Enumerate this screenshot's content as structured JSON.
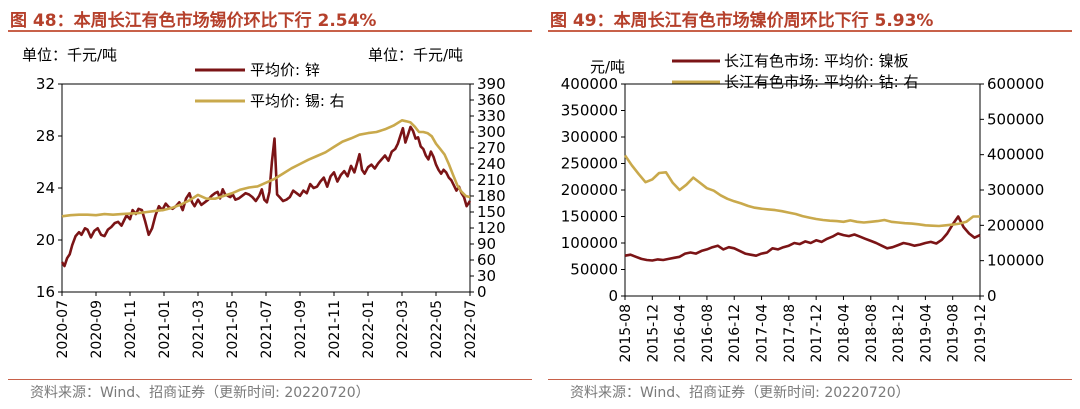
{
  "colors": {
    "title": "#b5402b",
    "rule": "#c8614a",
    "zinc": "#7b1416",
    "tin": "#c9a94c",
    "source": "#7a7a7a"
  },
  "chart_data": [
    {
      "type": "line",
      "title": "图 48：本周长江有色市场锡价环比下行 2.54%",
      "unit_left": "单位：千元/吨",
      "unit_right": "单位：千元/吨",
      "source": "资料来源：Wind、招商证券（更新时间: 20220720）",
      "x_ticks": [
        "2020-07",
        "2020-09",
        "2020-11",
        "2021-01",
        "2021-03",
        "2021-05",
        "2021-07",
        "2021-09",
        "2021-11",
        "2022-01",
        "2022-03",
        "2022-05",
        "2022-07"
      ],
      "y_left": {
        "ticks": [
          "16",
          "20",
          "24",
          "28",
          "32"
        ],
        "lim": [
          16,
          32
        ]
      },
      "y_right": {
        "ticks": [
          "0",
          "30",
          "60",
          "90",
          "120",
          "150",
          "180",
          "210",
          "240",
          "270",
          "300",
          "330",
          "360",
          "390"
        ],
        "lim": [
          0,
          390
        ]
      },
      "series": [
        {
          "name": "平均价: 锌",
          "axis": "left",
          "color": "#7b1416",
          "x": [
            0,
            0.3,
            0.6,
            0.9,
            1.2,
            1.6,
            2,
            2.3,
            2.7,
            3,
            3.4,
            3.8,
            4.2,
            4.6,
            5,
            5.4,
            5.8,
            6.2,
            6.6,
            7,
            7.3,
            7.6,
            8,
            8.3,
            8.7,
            9,
            9.4,
            9.8,
            10.2,
            10.6,
            11,
            11.4,
            11.8,
            12.2,
            12.6,
            13,
            13.4,
            13.8,
            14.2,
            14.6,
            15,
            15.3,
            15.6,
            16,
            16.4,
            16.8,
            17.2,
            17.6,
            18,
            18.3,
            18.6,
            18.9,
            19.2,
            19.5,
            19.8,
            20.1,
            20.4,
            20.8,
            21.2,
            21.6,
            22,
            22.4,
            22.8,
            23.2,
            23.5,
            23.8,
            24.1,
            24.4,
            24.7,
            25,
            25.3,
            25.6,
            26,
            26.4,
            26.8,
            27.2,
            27.6,
            28,
            28.4,
            28.8,
            29.2,
            29.6,
            30,
            30.4,
            30.8,
            31.2,
            31.6,
            32,
            32.4,
            32.8,
            33.2,
            33.6,
            34,
            34.4,
            34.7,
            35,
            35.3,
            35.6,
            36,
            36.4,
            36.8,
            37.2,
            37.6,
            38,
            38.4,
            38.8,
            39.2,
            39.5,
            39.8,
            40.1,
            40.4,
            40.7,
            41,
            41.3,
            41.6,
            41.9,
            42.2,
            42.5,
            42.8,
            43.1,
            43.4,
            43.7,
            44,
            44.3,
            44.6,
            44.9,
            45.2,
            45.5,
            45.8,
            46.1,
            46.4,
            46.7,
            47,
            47.3,
            47.6,
            48
          ],
          "values": [
            18.3,
            18.0,
            18.6,
            18.9,
            19.6,
            20.3,
            20.6,
            20.4,
            20.9,
            20.8,
            20.2,
            20.7,
            20.9,
            20.4,
            20.3,
            20.8,
            21.0,
            21.3,
            21.4,
            21.1,
            21.5,
            21.9,
            21.6,
            22.3,
            22.0,
            22.4,
            22.3,
            21.4,
            20.4,
            20.9,
            21.9,
            22.6,
            22.3,
            22.8,
            22.5,
            22.4,
            22.6,
            22.9,
            22.3,
            23.2,
            23.6,
            22.9,
            22.6,
            23.1,
            22.7,
            22.9,
            23.1,
            23.4,
            23.6,
            23.7,
            23.2,
            23.9,
            23.5,
            23.4,
            23.3,
            23.5,
            23.1,
            23.2,
            23.4,
            23.6,
            23.5,
            23.3,
            23.0,
            23.4,
            23.9,
            23.1,
            22.9,
            23.7,
            26.0,
            27.8,
            23.5,
            23.3,
            23.0,
            23.1,
            23.3,
            23.8,
            23.6,
            23.4,
            23.8,
            23.6,
            24.3,
            24.0,
            24.1,
            24.5,
            24.8,
            24.1,
            24.9,
            25.2,
            24.5,
            25.0,
            25.3,
            24.9,
            25.7,
            25.2,
            25.9,
            26.6,
            25.4,
            25.1,
            25.6,
            25.8,
            25.5,
            25.9,
            26.2,
            26.5,
            26.1,
            26.8,
            27.0,
            27.4,
            28.0,
            28.6,
            27.5,
            28.1,
            28.7,
            28.4,
            27.8,
            27.9,
            27.2,
            27.0,
            26.5,
            26.2,
            26.8,
            26.4,
            25.8,
            25.4,
            25.1,
            25.4,
            25.2,
            24.8,
            24.6,
            24.2,
            23.8,
            24.1,
            23.6,
            23.3,
            22.6,
            23.0
          ]
        },
        {
          "name": "平均价: 锡: 右",
          "axis": "right",
          "color": "#c9a94c",
          "x": [
            0,
            1,
            2,
            3,
            4,
            5,
            6,
            7,
            8,
            9,
            10,
            11,
            12,
            13,
            14,
            15,
            16,
            17,
            18,
            19,
            20,
            21,
            22,
            23,
            24,
            25,
            26,
            27,
            28,
            29,
            30,
            31,
            32,
            33,
            34,
            35,
            36,
            37,
            38,
            39,
            40,
            40.5,
            41,
            41.5,
            42,
            42.5,
            43,
            43.5,
            44,
            44.5,
            45,
            45.5,
            46,
            46.5,
            47,
            47.5,
            48
          ],
          "values": [
            142,
            144,
            145,
            145,
            144,
            146,
            145,
            146,
            147,
            148,
            150,
            152,
            154,
            158,
            164,
            172,
            182,
            175,
            175,
            180,
            185,
            192,
            196,
            198,
            205,
            212,
            222,
            232,
            240,
            248,
            255,
            262,
            272,
            282,
            288,
            295,
            298,
            300,
            305,
            312,
            322,
            320,
            318,
            310,
            300,
            300,
            298,
            292,
            278,
            268,
            258,
            240,
            220,
            200,
            188,
            180,
            178
          ]
        }
      ]
    },
    {
      "type": "line",
      "title": "图 49：本周长江有色市场镍价周环比下行 5.93%",
      "unit_left": "元/吨",
      "source": "资料来源：Wind、招商证券（更新时间: 20220720）",
      "x_ticks": [
        "2015-08",
        "2015-12",
        "2016-04",
        "2016-08",
        "2016-12",
        "2017-04",
        "2017-08",
        "2017-12",
        "2018-04",
        "2018-08",
        "2018-12",
        "2019-04",
        "2019-08",
        "2019-12"
      ],
      "y_left": {
        "ticks": [
          "0",
          "50000",
          "100000",
          "150000",
          "200000",
          "250000",
          "300000",
          "350000",
          "400000"
        ],
        "lim": [
          0,
          400000
        ]
      },
      "y_right": {
        "ticks": [
          "0",
          "100000",
          "200000",
          "300000",
          "400000",
          "500000",
          "600000"
        ],
        "lim": [
          0,
          600000
        ]
      },
      "series": [
        {
          "name": "长江有色市场: 平均价: 镍板",
          "axis": "left",
          "color": "#7b1416",
          "x": [
            0,
            0.2,
            0.4,
            0.6,
            0.8,
            1,
            1.2,
            1.4,
            1.6,
            1.8,
            2,
            2.2,
            2.4,
            2.6,
            2.8,
            3,
            3.2,
            3.4,
            3.6,
            3.8,
            4,
            4.2,
            4.4,
            4.6,
            4.8,
            5,
            5.2,
            5.4,
            5.6,
            5.8,
            6,
            6.2,
            6.4,
            6.6,
            6.8,
            7,
            7.2,
            7.4,
            7.6,
            7.8,
            8,
            8.2,
            8.4,
            8.6,
            8.8,
            9,
            9.2,
            9.4,
            9.6,
            9.8,
            10,
            10.2,
            10.4,
            10.6,
            10.8,
            11,
            11.2,
            11.4,
            11.6,
            11.8,
            12,
            12.2,
            12.4,
            12.6,
            12.8,
            13
          ],
          "values": [
            76000,
            78000,
            74000,
            70000,
            68000,
            67000,
            69000,
            68000,
            70000,
            72000,
            74000,
            80000,
            82000,
            80000,
            85000,
            88000,
            92000,
            95000,
            88000,
            92000,
            90000,
            85000,
            80000,
            78000,
            76000,
            80000,
            82000,
            90000,
            88000,
            92000,
            95000,
            100000,
            98000,
            103000,
            100000,
            105000,
            102000,
            108000,
            112000,
            118000,
            115000,
            113000,
            116000,
            112000,
            108000,
            104000,
            100000,
            95000,
            90000,
            92000,
            96000,
            100000,
            98000,
            95000,
            97000,
            100000,
            102000,
            99000,
            106000,
            118000,
            135000,
            150000,
            130000,
            118000,
            110000,
            115000
          ]
        },
        {
          "name": "长江有色市场: 平均价: 钴: 右",
          "axis": "right",
          "color": "#c9a94c",
          "x": [
            0,
            0.25,
            0.5,
            0.75,
            1,
            1.25,
            1.5,
            1.75,
            2,
            2.25,
            2.5,
            2.75,
            3,
            3.25,
            3.5,
            3.75,
            4,
            4.25,
            4.5,
            4.75,
            5,
            5.25,
            5.5,
            5.75,
            6,
            6.25,
            6.5,
            6.75,
            7,
            7.25,
            7.5,
            7.75,
            8,
            8.25,
            8.5,
            8.75,
            9,
            9.25,
            9.5,
            9.75,
            10,
            10.25,
            10.5,
            10.75,
            11,
            11.25,
            11.5,
            11.75,
            12,
            12.25,
            12.5,
            12.75,
            13
          ],
          "values": [
            398000,
            370000,
            345000,
            322000,
            330000,
            348000,
            350000,
            320000,
            300000,
            315000,
            335000,
            320000,
            305000,
            298000,
            285000,
            275000,
            268000,
            262000,
            255000,
            250000,
            247000,
            245000,
            243000,
            240000,
            236000,
            232000,
            226000,
            222000,
            218000,
            215000,
            213000,
            212000,
            210000,
            214000,
            210000,
            208000,
            210000,
            212000,
            215000,
            210000,
            208000,
            206000,
            205000,
            203000,
            200000,
            199000,
            198000,
            200000,
            202000,
            205000,
            210000,
            225000,
            225000
          ]
        }
      ]
    }
  ]
}
